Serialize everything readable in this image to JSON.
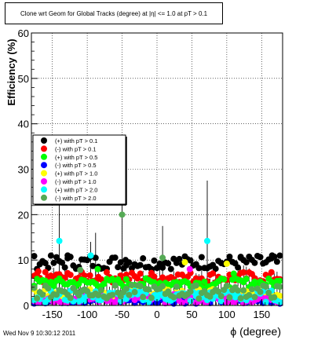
{
  "header": {
    "title": "Clone wrt Geom for Global Tracks (degree) at |η| <= 1.0 at pT > 0.1"
  },
  "footer": {
    "timestamp": "Wed Nov  9 10:30:12 2011"
  },
  "chart_data": {
    "type": "scatter",
    "title": "Clone wrt Geom for Global Tracks (degree) at |η| <= 1.0 at pT > 0.1",
    "xlabel": "ϕ (degree)",
    "ylabel": "Efficiency (%)",
    "xlim": [
      -180,
      180
    ],
    "ylim": [
      0,
      60
    ],
    "xticks": [
      -150,
      -100,
      -50,
      0,
      50,
      100,
      150
    ],
    "yticks": [
      0,
      10,
      20,
      30,
      40,
      50,
      60
    ],
    "grid": true,
    "legend_position": "middle-left",
    "series": [
      {
        "name": "(+) with pT > 0.1",
        "color": "#000000",
        "base": 9.5,
        "spread": 1.5,
        "outliers": [
          [
            -128,
            11
          ],
          [
            -45,
            10
          ],
          [
            120,
            10.5
          ],
          [
            165,
            11
          ]
        ]
      },
      {
        "name": "(-) with pT > 0.1",
        "color": "#ff0000",
        "base": 6.2,
        "spread": 1.2,
        "outliers": [
          [
            -170,
            7.5
          ],
          [
            30,
            6.8
          ]
        ]
      },
      {
        "name": "(+) with pT > 0.5",
        "color": "#00ff00",
        "base": 5.0,
        "spread": 1.0,
        "outliers": [
          [
            -85,
            8
          ],
          [
            110,
            7
          ]
        ]
      },
      {
        "name": "(-) with pT > 0.5",
        "color": "#0000ff",
        "base": 1.2,
        "spread": 0.8,
        "outliers": []
      },
      {
        "name": "(+) with pT > 1.0",
        "color": "#ffff00",
        "base": 2.6,
        "spread": 1.0,
        "outliers": [
          [
            40,
            9.5
          ],
          [
            100,
            9.2
          ]
        ]
      },
      {
        "name": "(-) with pT > 1.0",
        "color": "#ff00ff",
        "base": 1.5,
        "spread": 1.0,
        "outliers": [
          [
            47,
            8
          ]
        ]
      },
      {
        "name": "(+) with pT > 2.0",
        "color": "#00ffff",
        "base": 2.0,
        "spread": 1.3,
        "outliers": [
          [
            -140,
            14.2
          ],
          [
            -95,
            11
          ],
          [
            72,
            14.2
          ],
          [
            0,
            2.5
          ]
        ]
      },
      {
        "name": "(-) with pT > 2.0",
        "color": "#55aa55",
        "base": 3.0,
        "spread": 1.5,
        "outliers": [
          [
            -50,
            20
          ],
          [
            8,
            10.5
          ],
          [
            -110,
            7.8
          ]
        ]
      }
    ],
    "error_bar_peaks": [
      [
        -140,
        24
      ],
      [
        -95,
        14
      ],
      [
        -88,
        16
      ],
      [
        -50,
        26
      ],
      [
        8,
        17.5
      ],
      [
        72,
        27.5
      ],
      [
        -110,
        10
      ]
    ]
  }
}
